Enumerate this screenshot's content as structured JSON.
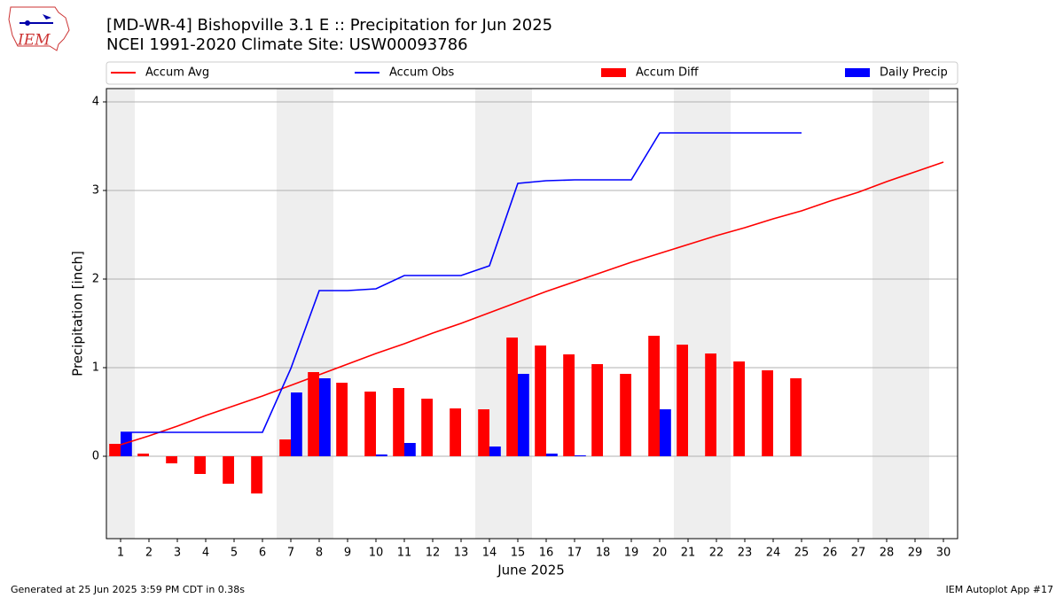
{
  "chart_data": {
    "type": "bar",
    "title": "[MD-WR-4] Bishopville 3.1 E :: Precipitation for Jun 2025",
    "subtitle": "NCEI 1991-2020 Climate Site: USW00093786",
    "logo_text": "IEM",
    "x_label": "June 2025",
    "y_label": "Precipitation [inch]",
    "footer_left": "Generated at 25 Jun 2025 3:59 PM CDT in 0.38s",
    "footer_right": "IEM Autoplot App #17",
    "x": [
      1,
      2,
      3,
      4,
      5,
      6,
      7,
      8,
      9,
      10,
      11,
      12,
      13,
      14,
      15,
      16,
      17,
      18,
      19,
      20,
      21,
      22,
      23,
      24,
      25,
      26,
      27,
      28,
      29,
      30
    ],
    "xlim": [
      0.5,
      30.5
    ],
    "xticks": [
      1,
      2,
      3,
      4,
      5,
      6,
      7,
      8,
      9,
      10,
      11,
      12,
      13,
      14,
      15,
      16,
      17,
      18,
      19,
      20,
      21,
      22,
      23,
      24,
      25,
      26,
      27,
      28,
      29,
      30
    ],
    "ylim": [
      -0.93,
      4.15
    ],
    "yticks": [
      0,
      1,
      2,
      3,
      4
    ],
    "grid": true,
    "shaded_days": [
      1,
      7,
      8,
      14,
      15,
      21,
      22,
      28,
      29
    ],
    "shade_color": "#eeeeee",
    "series": [
      {
        "name": "Accum Avg",
        "type": "line",
        "color": "#ff0000",
        "values": [
          0.13,
          0.23,
          0.34,
          0.46,
          0.57,
          0.68,
          0.8,
          0.92,
          1.04,
          1.16,
          1.27,
          1.39,
          1.5,
          1.62,
          1.74,
          1.86,
          1.97,
          2.08,
          2.19,
          2.29,
          2.39,
          2.49,
          2.58,
          2.68,
          2.77,
          2.88,
          2.98,
          3.1,
          3.21,
          3.32
        ]
      },
      {
        "name": "Accum Obs",
        "type": "line",
        "color": "#0000ff",
        "values": [
          0.27,
          0.27,
          0.27,
          0.27,
          0.27,
          0.27,
          0.99,
          1.87,
          1.87,
          1.89,
          2.04,
          2.04,
          2.04,
          2.15,
          3.08,
          3.11,
          3.12,
          3.12,
          3.12,
          3.65,
          3.65,
          3.65,
          3.65,
          3.65,
          3.65,
          null,
          null,
          null,
          null,
          null
        ]
      },
      {
        "name": "Accum Diff",
        "type": "bar",
        "offset": -0.2,
        "color": "#ff0000",
        "values": [
          0.14,
          0.03,
          -0.08,
          -0.2,
          -0.31,
          -0.42,
          0.19,
          0.95,
          0.83,
          0.73,
          0.77,
          0.65,
          0.54,
          0.53,
          1.34,
          1.25,
          1.15,
          1.04,
          0.93,
          1.36,
          1.26,
          1.16,
          1.07,
          0.97,
          0.88,
          null,
          null,
          null,
          null,
          null
        ]
      },
      {
        "name": "Daily Precip",
        "type": "bar",
        "offset": 0.2,
        "color": "#0000ff",
        "values": [
          0.27,
          0,
          0,
          0,
          0,
          0,
          0.72,
          0.88,
          0,
          0.02,
          0.15,
          0,
          0,
          0.11,
          0.93,
          0.03,
          0.01,
          0,
          0,
          0.53,
          0,
          0,
          0,
          0,
          0,
          null,
          null,
          null,
          null,
          null
        ]
      }
    ]
  }
}
